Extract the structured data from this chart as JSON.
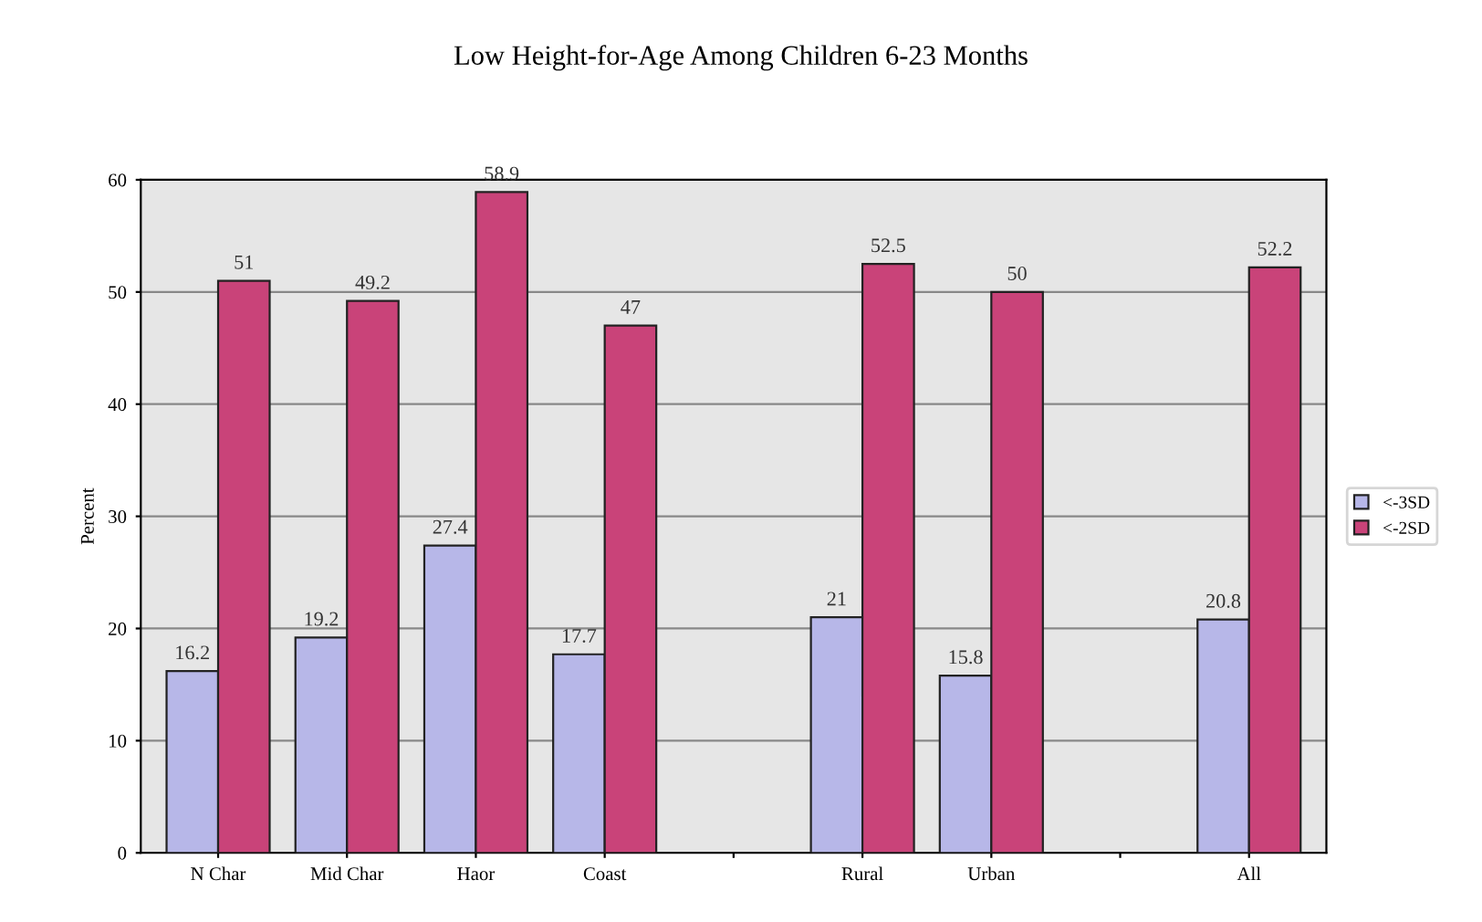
{
  "chart_data": {
    "type": "bar",
    "title": "Low Height-for-Age Among Children 6-23 Months",
    "ylabel": "Percent",
    "categories": [
      "N Char",
      "Mid Char",
      "Haor",
      "Coast",
      null,
      "Rural",
      "Urban",
      null,
      "All"
    ],
    "series": [
      {
        "name": "<-3SD",
        "color": "#b7b7e8",
        "values": [
          16.2,
          19.2,
          27.4,
          17.7,
          null,
          21,
          15.8,
          null,
          20.8
        ]
      },
      {
        "name": "<-2SD",
        "color": "#c94379",
        "values": [
          51,
          49.2,
          58.9,
          47,
          null,
          52.5,
          50,
          null,
          52.2
        ]
      }
    ],
    "ylim": [
      0,
      60
    ],
    "yticks": [
      0,
      10,
      20,
      30,
      40,
      50,
      60
    ],
    "grid": "y",
    "legend": "right",
    "data_labels": true
  }
}
